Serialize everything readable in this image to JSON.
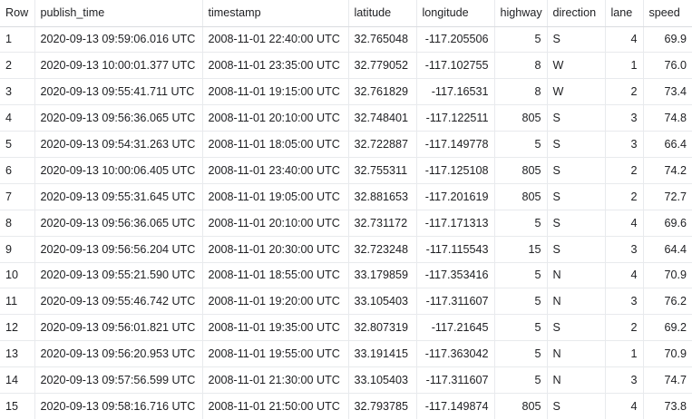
{
  "table": {
    "headers": [
      "Row",
      "publish_time",
      "timestamp",
      "latitude",
      "longitude",
      "highway",
      "direction",
      "lane",
      "speed"
    ],
    "rows": [
      [
        "1",
        "2020-09-13 09:59:06.016 UTC",
        "2008-11-01 22:40:00 UTC",
        "32.765048",
        "-117.205506",
        "5",
        "S",
        "4",
        "69.9"
      ],
      [
        "2",
        "2020-09-13 10:00:01.377 UTC",
        "2008-11-01 23:35:00 UTC",
        "32.779052",
        "-117.102755",
        "8",
        "W",
        "1",
        "76.0"
      ],
      [
        "3",
        "2020-09-13 09:55:41.711 UTC",
        "2008-11-01 19:15:00 UTC",
        "32.761829",
        "-117.16531",
        "8",
        "W",
        "2",
        "73.4"
      ],
      [
        "4",
        "2020-09-13 09:56:36.065 UTC",
        "2008-11-01 20:10:00 UTC",
        "32.748401",
        "-117.122511",
        "805",
        "S",
        "3",
        "74.8"
      ],
      [
        "5",
        "2020-09-13 09:54:31.263 UTC",
        "2008-11-01 18:05:00 UTC",
        "32.722887",
        "-117.149778",
        "5",
        "S",
        "3",
        "66.4"
      ],
      [
        "6",
        "2020-09-13 10:00:06.405 UTC",
        "2008-11-01 23:40:00 UTC",
        "32.755311",
        "-117.125108",
        "805",
        "S",
        "2",
        "74.2"
      ],
      [
        "7",
        "2020-09-13 09:55:31.645 UTC",
        "2008-11-01 19:05:00 UTC",
        "32.881653",
        "-117.201619",
        "805",
        "S",
        "2",
        "72.7"
      ],
      [
        "8",
        "2020-09-13 09:56:36.065 UTC",
        "2008-11-01 20:10:00 UTC",
        "32.731172",
        "-117.171313",
        "5",
        "S",
        "4",
        "69.6"
      ],
      [
        "9",
        "2020-09-13 09:56:56.204 UTC",
        "2008-11-01 20:30:00 UTC",
        "32.723248",
        "-117.115543",
        "15",
        "S",
        "3",
        "64.4"
      ],
      [
        "10",
        "2020-09-13 09:55:21.590 UTC",
        "2008-11-01 18:55:00 UTC",
        "33.179859",
        "-117.353416",
        "5",
        "N",
        "4",
        "70.9"
      ],
      [
        "11",
        "2020-09-13 09:55:46.742 UTC",
        "2008-11-01 19:20:00 UTC",
        "33.105403",
        "-117.311607",
        "5",
        "N",
        "3",
        "76.2"
      ],
      [
        "12",
        "2020-09-13 09:56:01.821 UTC",
        "2008-11-01 19:35:00 UTC",
        "32.807319",
        "-117.21645",
        "5",
        "S",
        "2",
        "69.2"
      ],
      [
        "13",
        "2020-09-13 09:56:20.953 UTC",
        "2008-11-01 19:55:00 UTC",
        "33.191415",
        "-117.363042",
        "5",
        "N",
        "1",
        "70.9"
      ],
      [
        "14",
        "2020-09-13 09:57:56.599 UTC",
        "2008-11-01 21:30:00 UTC",
        "33.105403",
        "-117.311607",
        "5",
        "N",
        "3",
        "74.7"
      ],
      [
        "15",
        "2020-09-13 09:58:16.716 UTC",
        "2008-11-01 21:50:00 UTC",
        "32.793785",
        "-117.149874",
        "805",
        "S",
        "4",
        "73.8"
      ]
    ]
  }
}
